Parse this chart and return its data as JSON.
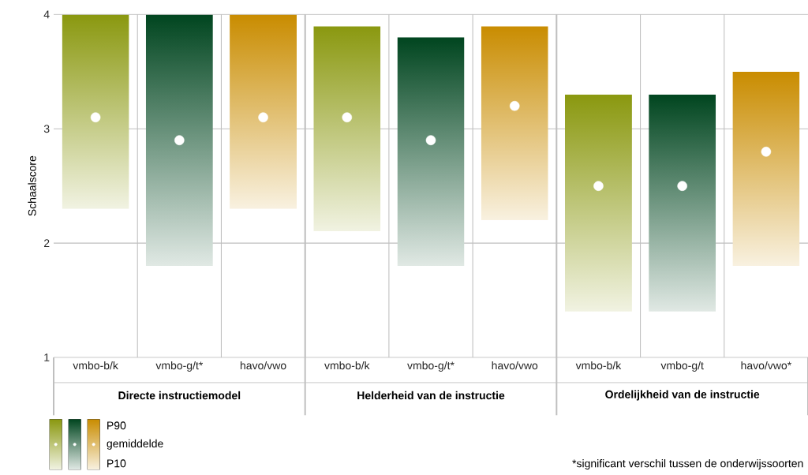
{
  "chart_data": {
    "type": "bar",
    "ylabel": "Schaalscore",
    "categories": [
      "vmbo-b/k",
      "vmbo-g/t*",
      "havo/vwo",
      "vmbo-b/k",
      "vmbo-g/t*",
      "havo/vwo",
      "vmbo-b/k",
      "vmbo-g/t",
      "havo/vwo*"
    ],
    "series": [
      {
        "base": [
          2.3,
          1.8,
          2.3,
          2.1,
          1.8,
          2.2,
          1.4,
          1.4,
          1.8
        ],
        "values": [
          1.7,
          2.2,
          1.7,
          1.8,
          2.0,
          1.7,
          1.9,
          1.9,
          1.7
        ],
        "colors": [
          "#8a980f",
          "#00451f",
          "#c98c00",
          "#8a980f",
          "#00451f",
          "#c98c00",
          "#8a980f",
          "#00451f",
          "#c98c00"
        ]
      },
      {
        "type": "scatter",
        "name": "gemiddelde",
        "color": "#ffffff",
        "marker": "circle",
        "values": [
          3.1,
          2.9,
          3.1,
          3.1,
          2.9,
          3.2,
          2.5,
          2.5,
          2.8
        ]
      }
    ],
    "ylim": [
      1,
      4
    ],
    "yticks": [
      1,
      2,
      3,
      4
    ],
    "grid": true,
    "legend": "bottom left",
    "annotations": [
      "Directe instructiemodel",
      "Helderheid van de instructie",
      "Ordelijkheid van de instructie",
      "P90",
      "P10",
      "*significant verschil tussen de onderwijssoorten"
    ]
  }
}
